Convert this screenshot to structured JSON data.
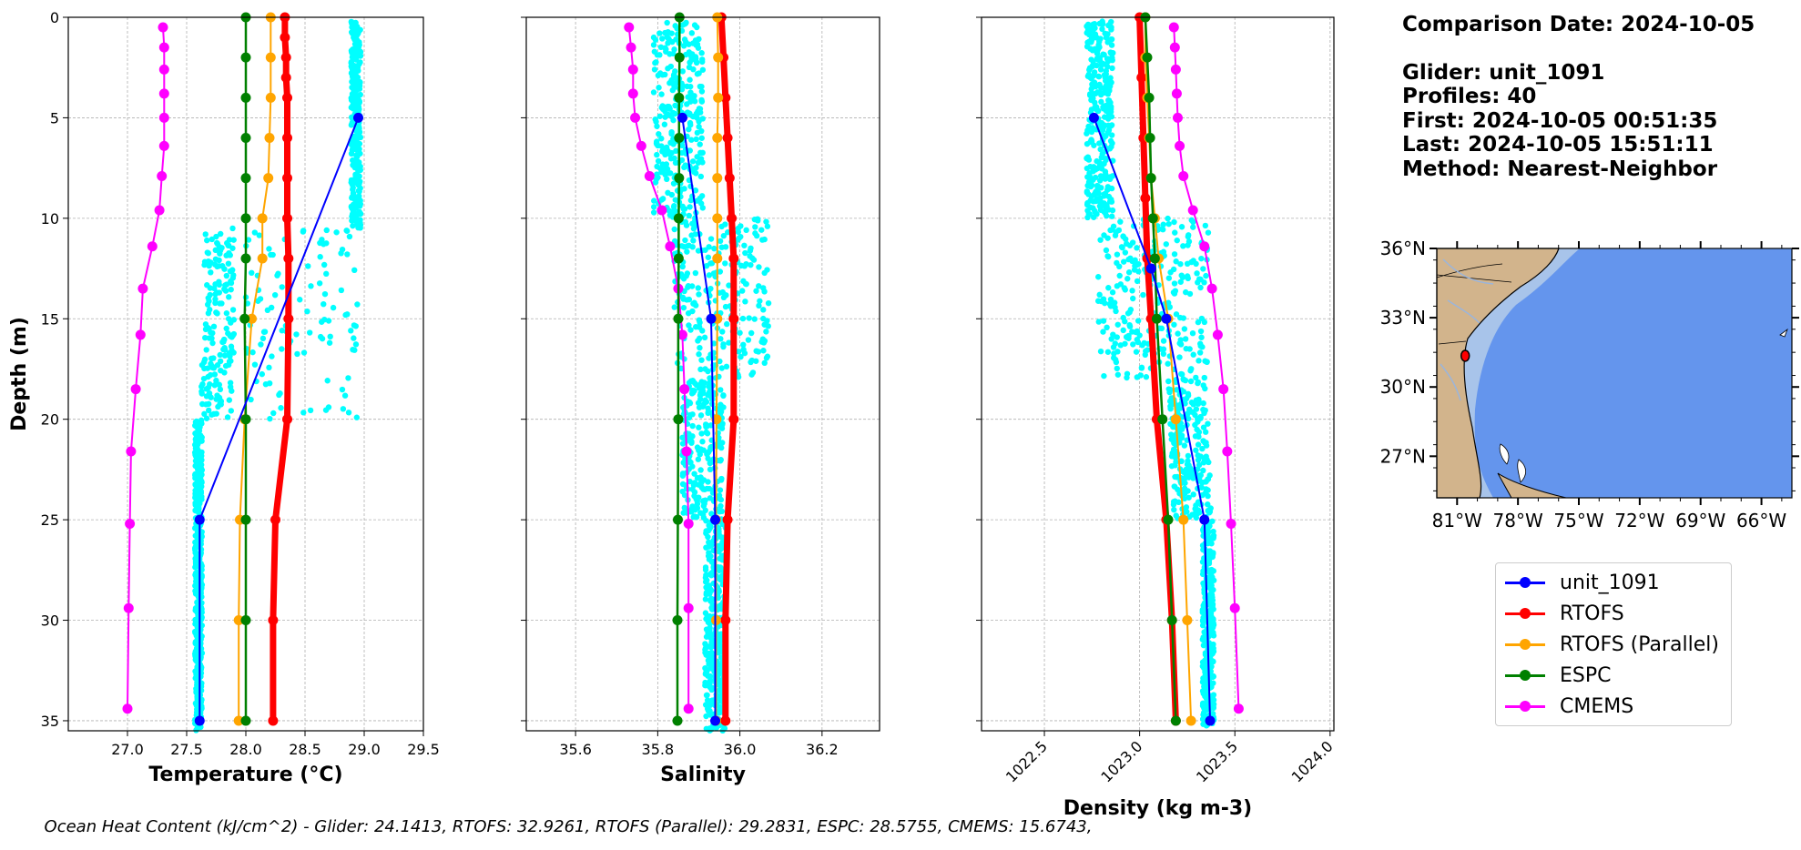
{
  "info": {
    "comparison_date": "Comparison Date: 2024-10-05",
    "glider": "Glider: unit_1091",
    "profiles": "Profiles: 40",
    "first": "First: 2024-10-05 00:51:35",
    "last": "Last: 2024-10-05 15:51:11",
    "method": "Method: Nearest-Neighbor"
  },
  "caption": "Ocean Heat Content (kJ/cm^2) - Glider: 24.1413,  RTOFS: 32.9261,  RTOFS (Parallel): 29.2831,  ESPC: 28.5755,  CMEMS: 15.6743,",
  "colors": {
    "glider": "#0000ff",
    "glider_scatter": "#00ffff",
    "rtofs": "#ff0000",
    "rtofs_parallel": "#ffa500",
    "espc": "#008000",
    "cmems": "#ff00ff",
    "grid": "#b0b0b0",
    "land": "#d2b48c",
    "ocean": "#6495ed",
    "shelf": "#a8c4ea"
  },
  "legend": [
    {
      "label": "unit_1091",
      "color": "#0000ff"
    },
    {
      "label": "RTOFS",
      "color": "#ff0000"
    },
    {
      "label": "RTOFS (Parallel)",
      "color": "#ffa500"
    },
    {
      "label": "ESPC",
      "color": "#008000"
    },
    {
      "label": "CMEMS",
      "color": "#ff00ff"
    }
  ],
  "chart_data": [
    {
      "type": "line",
      "xlabel": "Temperature (°C)",
      "ylabel": "Depth (m)",
      "xlim": [
        26.5,
        29.5
      ],
      "ylim": [
        35.5,
        0
      ],
      "xticks": [
        27.0,
        27.5,
        28.0,
        28.5,
        29.0,
        29.5
      ],
      "xtick_labels": [
        "27.0",
        "27.5",
        "28.0",
        "28.5",
        "29.0",
        "29.5"
      ],
      "yticks": [
        0,
        5,
        10,
        15,
        20,
        25,
        30,
        35
      ],
      "grid": true,
      "series": [
        {
          "name": "CMEMS",
          "key": "cmems",
          "lw": 2,
          "points": [
            [
              27.3,
              0.5
            ],
            [
              27.31,
              1.5
            ],
            [
              27.31,
              2.6
            ],
            [
              27.31,
              3.8
            ],
            [
              27.31,
              5.0
            ],
            [
              27.31,
              6.4
            ],
            [
              27.29,
              7.9
            ],
            [
              27.27,
              9.6
            ],
            [
              27.21,
              11.4
            ],
            [
              27.13,
              13.5
            ],
            [
              27.11,
              15.8
            ],
            [
              27.07,
              18.5
            ],
            [
              27.03,
              21.6
            ],
            [
              27.02,
              25.2
            ],
            [
              27.01,
              29.4
            ],
            [
              27.0,
              34.4
            ]
          ]
        },
        {
          "name": "RTOFS",
          "key": "rtofs",
          "lw": 7,
          "points": [
            [
              28.33,
              0
            ],
            [
              28.33,
              1
            ],
            [
              28.34,
              2
            ],
            [
              28.34,
              3
            ],
            [
              28.35,
              4
            ],
            [
              28.35,
              6
            ],
            [
              28.35,
              8
            ],
            [
              28.35,
              10
            ],
            [
              28.36,
              12
            ],
            [
              28.36,
              15
            ],
            [
              28.35,
              20
            ],
            [
              28.25,
              25
            ],
            [
              28.23,
              30
            ],
            [
              28.23,
              35
            ]
          ]
        },
        {
          "name": "RTOFS (Parallel)",
          "key": "rtofs_parallel",
          "lw": 2,
          "points": [
            [
              28.21,
              0
            ],
            [
              28.21,
              2
            ],
            [
              28.21,
              4
            ],
            [
              28.2,
              6
            ],
            [
              28.19,
              8
            ],
            [
              28.14,
              10
            ],
            [
              28.14,
              12
            ],
            [
              28.05,
              15
            ],
            [
              27.99,
              20
            ],
            [
              27.95,
              25
            ],
            [
              27.94,
              30
            ],
            [
              27.94,
              35
            ]
          ]
        },
        {
          "name": "ESPC",
          "key": "espc",
          "lw": 2.5,
          "points": [
            [
              28.0,
              0
            ],
            [
              28.0,
              2
            ],
            [
              28.0,
              4
            ],
            [
              28.0,
              6
            ],
            [
              28.0,
              8
            ],
            [
              28.0,
              10
            ],
            [
              28.0,
              12
            ],
            [
              27.99,
              15
            ],
            [
              28.0,
              20
            ],
            [
              28.0,
              25
            ],
            [
              28.0,
              30
            ],
            [
              28.0,
              35
            ]
          ]
        },
        {
          "name": "unit_1091",
          "key": "glider",
          "lw": 2,
          "points": [
            [
              28.95,
              5
            ],
            [
              27.61,
              25
            ],
            [
              27.61,
              35
            ]
          ]
        }
      ]
    },
    {
      "type": "line",
      "xlabel": "Salinity",
      "ylabel": "",
      "xlim": [
        35.48,
        36.34
      ],
      "ylim": [
        35.5,
        0
      ],
      "xticks": [
        35.6,
        35.8,
        36.0,
        36.2
      ],
      "xtick_labels": [
        "35.6",
        "35.8",
        "36.0",
        "36.2"
      ],
      "yticks": [
        0,
        5,
        10,
        15,
        20,
        25,
        30,
        35
      ],
      "grid": true,
      "series": [
        {
          "name": "CMEMS",
          "key": "cmems",
          "lw": 2,
          "points": [
            [
              35.73,
              0.5
            ],
            [
              35.735,
              1.5
            ],
            [
              35.74,
              2.6
            ],
            [
              35.74,
              3.8
            ],
            [
              35.745,
              5.0
            ],
            [
              35.76,
              6.4
            ],
            [
              35.78,
              7.9
            ],
            [
              35.81,
              9.6
            ],
            [
              35.83,
              11.4
            ],
            [
              35.85,
              13.5
            ],
            [
              35.86,
              15.8
            ],
            [
              35.865,
              18.5
            ],
            [
              35.87,
              21.6
            ],
            [
              35.875,
              25.2
            ],
            [
              35.875,
              29.4
            ],
            [
              35.875,
              34.4
            ]
          ]
        },
        {
          "name": "RTOFS",
          "key": "rtofs",
          "lw": 7,
          "points": [
            [
              35.955,
              0
            ],
            [
              35.96,
              2
            ],
            [
              35.965,
              4
            ],
            [
              35.97,
              6
            ],
            [
              35.975,
              8
            ],
            [
              35.98,
              10
            ],
            [
              35.985,
              12
            ],
            [
              35.985,
              15
            ],
            [
              35.985,
              20
            ],
            [
              35.97,
              25
            ],
            [
              35.965,
              30
            ],
            [
              35.965,
              35
            ]
          ]
        },
        {
          "name": "RTOFS (Parallel)",
          "key": "rtofs_parallel",
          "lw": 2,
          "points": [
            [
              35.945,
              0
            ],
            [
              35.947,
              2
            ],
            [
              35.947,
              4
            ],
            [
              35.945,
              6
            ],
            [
              35.945,
              8
            ],
            [
              35.945,
              10
            ],
            [
              35.945,
              12
            ],
            [
              35.945,
              15
            ],
            [
              35.943,
              20
            ],
            [
              35.942,
              25
            ],
            [
              35.942,
              30
            ],
            [
              35.942,
              35
            ]
          ]
        },
        {
          "name": "ESPC",
          "key": "espc",
          "lw": 2.5,
          "points": [
            [
              35.853,
              0
            ],
            [
              35.853,
              2
            ],
            [
              35.852,
              4
            ],
            [
              35.852,
              6
            ],
            [
              35.852,
              8
            ],
            [
              35.851,
              10
            ],
            [
              35.851,
              12
            ],
            [
              35.85,
              15
            ],
            [
              35.85,
              20
            ],
            [
              35.849,
              25
            ],
            [
              35.848,
              30
            ],
            [
              35.848,
              35
            ]
          ]
        },
        {
          "name": "unit_1091",
          "key": "glider",
          "lw": 2,
          "points": [
            [
              35.86,
              5
            ],
            [
              35.93,
              15
            ],
            [
              35.94,
              25
            ],
            [
              35.94,
              35
            ]
          ]
        }
      ]
    },
    {
      "type": "line",
      "xlabel": "Density (kg m-3)",
      "ylabel": "",
      "xlim": [
        1022.17,
        1024.02
      ],
      "ylim": [
        35.5,
        0
      ],
      "xticks": [
        1022.5,
        1023.0,
        1023.5,
        1024.0
      ],
      "xtick_labels": [
        "1022.5",
        "1023.0",
        "1023.5",
        "1024.0"
      ],
      "yticks": [
        0,
        5,
        10,
        15,
        20,
        25,
        30,
        35
      ],
      "grid": true,
      "series": [
        {
          "name": "CMEMS",
          "key": "cmems",
          "lw": 2,
          "points": [
            [
              1023.18,
              0.5
            ],
            [
              1023.185,
              1.5
            ],
            [
              1023.19,
              2.6
            ],
            [
              1023.195,
              3.8
            ],
            [
              1023.2,
              5.0
            ],
            [
              1023.21,
              6.4
            ],
            [
              1023.23,
              7.9
            ],
            [
              1023.28,
              9.6
            ],
            [
              1023.34,
              11.4
            ],
            [
              1023.38,
              13.5
            ],
            [
              1023.41,
              15.8
            ],
            [
              1023.44,
              18.5
            ],
            [
              1023.46,
              21.6
            ],
            [
              1023.48,
              25.2
            ],
            [
              1023.5,
              29.4
            ],
            [
              1023.52,
              34.4
            ]
          ]
        },
        {
          "name": "RTOFS",
          "key": "rtofs",
          "lw": 7,
          "points": [
            [
              1023.0,
              0
            ],
            [
              1023.01,
              3
            ],
            [
              1023.02,
              6
            ],
            [
              1023.03,
              9
            ],
            [
              1023.04,
              12
            ],
            [
              1023.06,
              15
            ],
            [
              1023.09,
              20
            ],
            [
              1023.14,
              25
            ],
            [
              1023.17,
              30
            ],
            [
              1023.19,
              35
            ]
          ]
        },
        {
          "name": "RTOFS (Parallel)",
          "key": "rtofs_parallel",
          "lw": 2,
          "points": [
            [
              1023.03,
              0
            ],
            [
              1023.03,
              2
            ],
            [
              1023.04,
              4
            ],
            [
              1023.05,
              6
            ],
            [
              1023.06,
              8
            ],
            [
              1023.08,
              10
            ],
            [
              1023.1,
              12
            ],
            [
              1023.15,
              15
            ],
            [
              1023.19,
              20
            ],
            [
              1023.23,
              25
            ],
            [
              1023.25,
              30
            ],
            [
              1023.27,
              35
            ]
          ]
        },
        {
          "name": "ESPC",
          "key": "espc",
          "lw": 2.5,
          "points": [
            [
              1023.03,
              0
            ],
            [
              1023.04,
              2
            ],
            [
              1023.05,
              4
            ],
            [
              1023.055,
              6
            ],
            [
              1023.06,
              8
            ],
            [
              1023.07,
              10
            ],
            [
              1023.08,
              12
            ],
            [
              1023.09,
              15
            ],
            [
              1023.12,
              20
            ],
            [
              1023.15,
              25
            ],
            [
              1023.17,
              30
            ],
            [
              1023.19,
              35
            ]
          ]
        },
        {
          "name": "unit_1091",
          "key": "glider",
          "lw": 2,
          "points": [
            [
              1022.76,
              5
            ],
            [
              1023.06,
              12.5
            ],
            [
              1023.14,
              15
            ],
            [
              1023.34,
              25
            ],
            [
              1023.37,
              35
            ]
          ]
        }
      ]
    }
  ],
  "map": {
    "lat_ticks": [
      "36°N",
      "33°N",
      "30°N",
      "27°N"
    ],
    "lon_ticks": [
      "81°W",
      "78°W",
      "75°W",
      "72°W",
      "69°W",
      "66°W"
    ],
    "lat_range": [
      25.2,
      36.0
    ],
    "lon_range": [
      -82.0,
      -64.5
    ],
    "glider_position": {
      "lon": -80.6,
      "lat": 31.35
    }
  }
}
